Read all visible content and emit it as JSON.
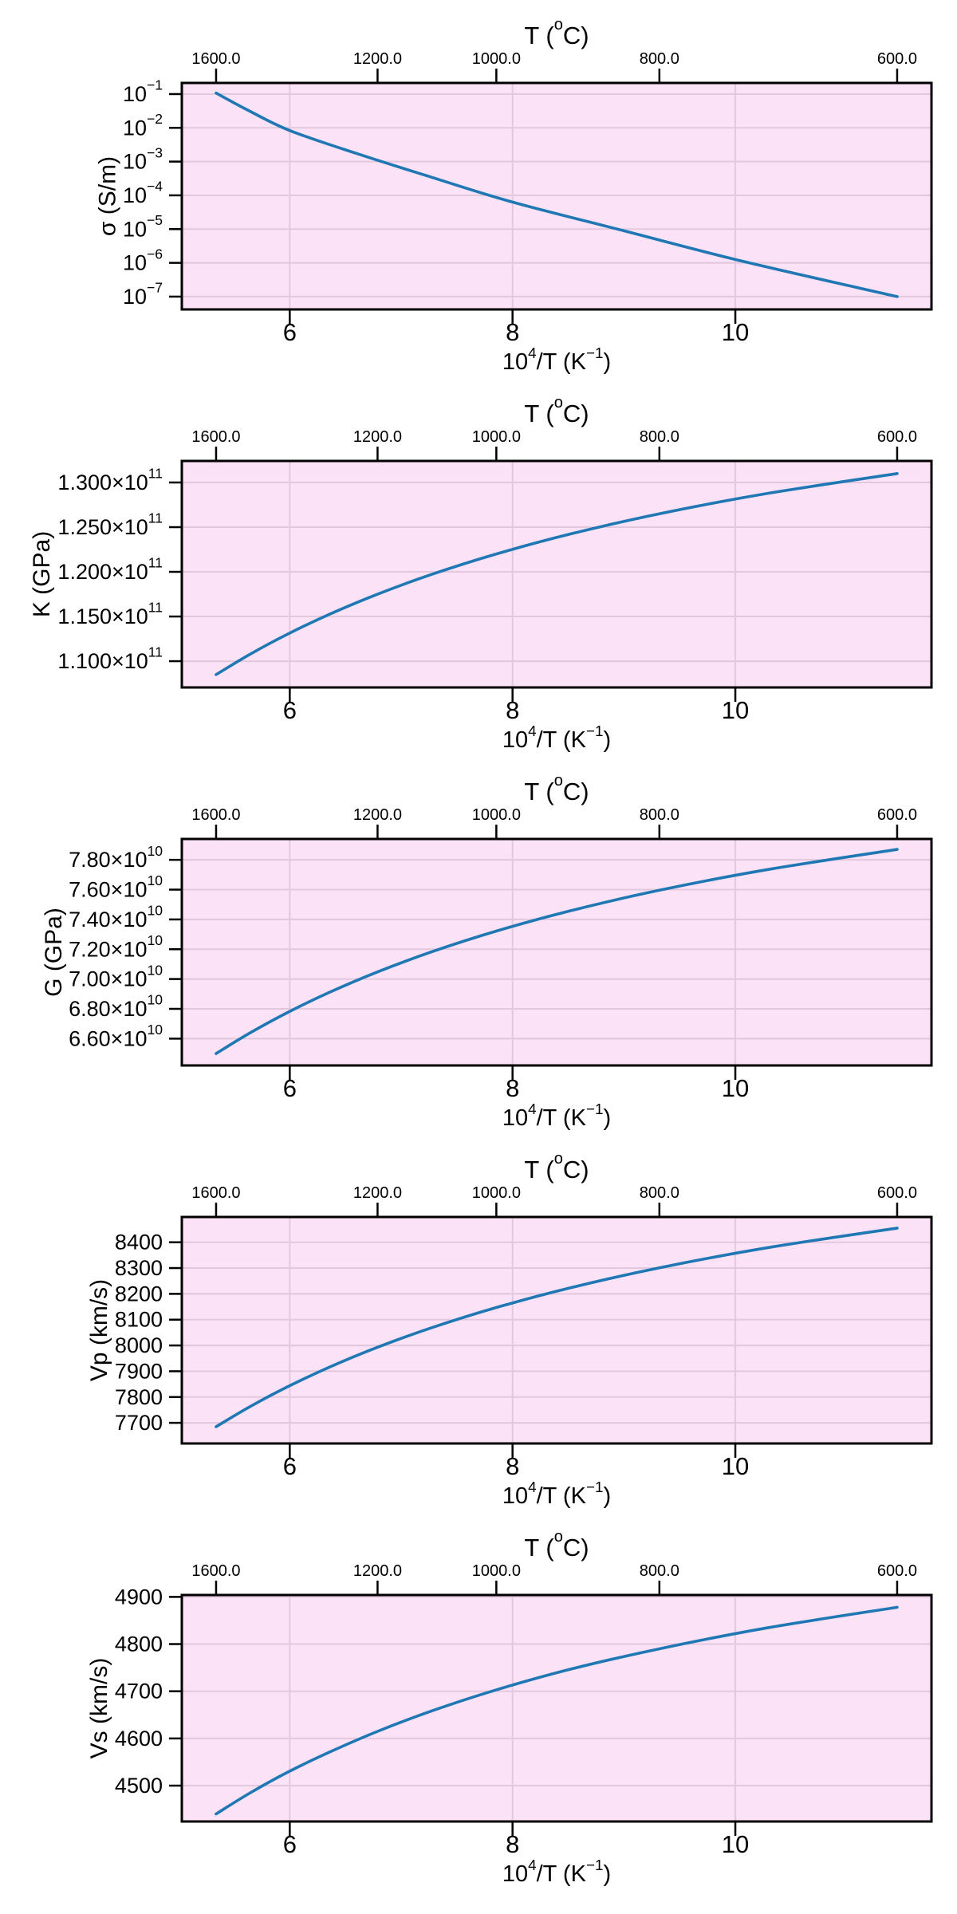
{
  "style": {
    "fig_bg": "#ffffff",
    "plot_bg": "#fce2f6",
    "grid_color": "#e3c7dc",
    "spine_color": "#000000",
    "text_color": "#000000",
    "series_color": "#1f77b4"
  },
  "shared_axes": {
    "xlim": [
      5.031,
      11.761
    ],
    "x_label_text": "10^4/T (K^-1)",
    "x_label_parts": [
      {
        "t": "10"
      },
      {
        "t": "4",
        "sup": true
      },
      {
        "t": "/T (K"
      },
      {
        "t": "−1",
        "sup": true
      },
      {
        "t": ")"
      }
    ],
    "x_ticks": [
      {
        "v": 6,
        "t": "6"
      },
      {
        "v": 8,
        "t": "8"
      },
      {
        "v": 10,
        "t": "10"
      }
    ],
    "top_title_text": "T (oC)",
    "top_title_parts": [
      {
        "t": "T ("
      },
      {
        "t": "o",
        "sup": true
      },
      {
        "t": "C)"
      }
    ],
    "top_ticks": [
      {
        "v": 5.3386,
        "t": "1600.0"
      },
      {
        "v": 6.7882,
        "t": "1200.0"
      },
      {
        "v": 7.8545,
        "t": "1000.0"
      },
      {
        "v": 9.3184,
        "t": "800.0"
      },
      {
        "v": 11.4528,
        "t": "600.0"
      }
    ]
  },
  "chart_data": [
    {
      "type": "line",
      "name": "sigma",
      "title": "T (oC)",
      "xlabel": "10^4/T (K^-1)",
      "ylabel": "σ (S/m)",
      "yscale": "log",
      "ylim": [
        4.17e-08,
        0.2138
      ],
      "yticks": [
        {
          "v": 0.1,
          "pow": "−1"
        },
        {
          "v": 0.01,
          "pow": "−2"
        },
        {
          "v": 0.001,
          "pow": "−3"
        },
        {
          "v": 0.0001,
          "pow": "−4"
        },
        {
          "v": 1e-05,
          "pow": "−5"
        },
        {
          "v": 1e-06,
          "pow": "−6"
        },
        {
          "v": 1e-07,
          "pow": "−7"
        }
      ],
      "grid": true,
      "legend": "none",
      "series": {
        "x": [
          5.339,
          5.62,
          6.0,
          6.6,
          7.26,
          8.0,
          9.0,
          10.0,
          11.13,
          11.453
        ],
        "y": [
          0.1072,
          0.0339,
          0.00832,
          0.001738,
          0.0003548,
          6.31e-05,
          8.91e-06,
          1.259e-06,
          1.738e-07,
          1e-07
        ],
        "log10_y": [
          -0.97,
          -1.47,
          -2.08,
          -2.76,
          -3.45,
          -4.2,
          -5.05,
          -5.9,
          -6.76,
          -7.0
        ]
      }
    },
    {
      "type": "line",
      "name": "K",
      "title": "T (oC)",
      "xlabel": "10^4/T (K^-1)",
      "ylabel": "K (GPa)",
      "yscale": "linear",
      "ylim": [
        107060000000.0,
        132410000000.0
      ],
      "yticks": [
        {
          "v": 110000000000.0,
          "m": "1.100",
          "e": "11"
        },
        {
          "v": 115000000000.0,
          "m": "1.150",
          "e": "11"
        },
        {
          "v": 120000000000.0,
          "m": "1.200",
          "e": "11"
        },
        {
          "v": 125000000000.0,
          "m": "1.250",
          "e": "11"
        },
        {
          "v": 130000000000.0,
          "m": "1.300",
          "e": "11"
        }
      ],
      "grid": true,
      "legend": "none",
      "series": {
        "x": [
          5.3386,
          5.6397,
          5.9767,
          6.3567,
          6.7882,
          7.2825,
          7.8545,
          8.5241,
          9.3184,
          10.2759,
          11.4528
        ],
        "y": [
          108500000000.0,
          110750000000.0,
          113000000000.0,
          115250000000.0,
          117500000000.0,
          119750000000.0,
          122000000000.0,
          124250000000.0,
          126500000000.0,
          128750000000.0,
          131000000000.0
        ]
      }
    },
    {
      "type": "line",
      "name": "G",
      "title": "T (oC)",
      "xlabel": "10^4/T (K^-1)",
      "ylabel": "G (GPa)",
      "yscale": "linear",
      "ylim": [
        64200000000.0,
        79400000000.0
      ],
      "yticks": [
        {
          "v": 66000000000.0,
          "m": "6.60",
          "e": "10"
        },
        {
          "v": 68000000000.0,
          "m": "6.80",
          "e": "10"
        },
        {
          "v": 70000000000.0,
          "m": "7.00",
          "e": "10"
        },
        {
          "v": 72000000000.0,
          "m": "7.20",
          "e": "10"
        },
        {
          "v": 74000000000.0,
          "m": "7.40",
          "e": "10"
        },
        {
          "v": 76000000000.0,
          "m": "7.60",
          "e": "10"
        },
        {
          "v": 78000000000.0,
          "m": "7.80",
          "e": "10"
        }
      ],
      "grid": true,
      "legend": "none",
      "series": {
        "x": [
          5.3386,
          5.6397,
          5.9767,
          6.3567,
          6.7882,
          7.2825,
          7.8545,
          8.5241,
          9.3184,
          10.2759,
          11.4528
        ],
        "y": [
          65000000000.0,
          66370000000.0,
          67740000000.0,
          69110000000.0,
          70480000000.0,
          71850000000.0,
          73220000000.0,
          74590000000.0,
          75960000000.0,
          77330000000.0,
          78700000000.0
        ]
      }
    },
    {
      "type": "line",
      "name": "Vp",
      "title": "T (oC)",
      "xlabel": "10^4/T (K^-1)",
      "ylabel": "Vp (km/s)",
      "yscale": "linear",
      "ylim": [
        7620,
        8498
      ],
      "yticks": [
        {
          "v": 7700,
          "plain": "7700"
        },
        {
          "v": 7800,
          "plain": "7800"
        },
        {
          "v": 7900,
          "plain": "7900"
        },
        {
          "v": 8000,
          "plain": "8000"
        },
        {
          "v": 8100,
          "plain": "8100"
        },
        {
          "v": 8200,
          "plain": "8200"
        },
        {
          "v": 8300,
          "plain": "8300"
        },
        {
          "v": 8400,
          "plain": "8400"
        }
      ],
      "grid": true,
      "legend": "none",
      "series": {
        "x": [
          5.3386,
          5.6397,
          5.9767,
          6.3567,
          6.7882,
          7.2825,
          7.8545,
          8.5241,
          9.3184,
          10.2759,
          11.4528
        ],
        "y": [
          7685,
          7762,
          7839,
          7916,
          7993,
          8070,
          8147,
          8224,
          8301,
          8378,
          8455
        ]
      }
    },
    {
      "type": "line",
      "name": "Vs",
      "title": "T (oC)",
      "xlabel": "10^4/T (K^-1)",
      "ylabel": "Vs (km/s)",
      "yscale": "linear",
      "ylim": [
        4424,
        4904
      ],
      "yticks": [
        {
          "v": 4500,
          "plain": "4500"
        },
        {
          "v": 4600,
          "plain": "4600"
        },
        {
          "v": 4700,
          "plain": "4700"
        },
        {
          "v": 4800,
          "plain": "4800"
        },
        {
          "v": 4900,
          "plain": "4900"
        }
      ],
      "grid": true,
      "legend": "none",
      "series": {
        "x": [
          5.3386,
          5.6397,
          5.9767,
          6.3567,
          6.7882,
          7.2825,
          7.8545,
          8.5241,
          9.3184,
          10.2759,
          11.4528
        ],
        "y": [
          4440,
          4484,
          4528,
          4571,
          4615,
          4659,
          4703,
          4747,
          4790,
          4834,
          4878
        ]
      }
    }
  ]
}
